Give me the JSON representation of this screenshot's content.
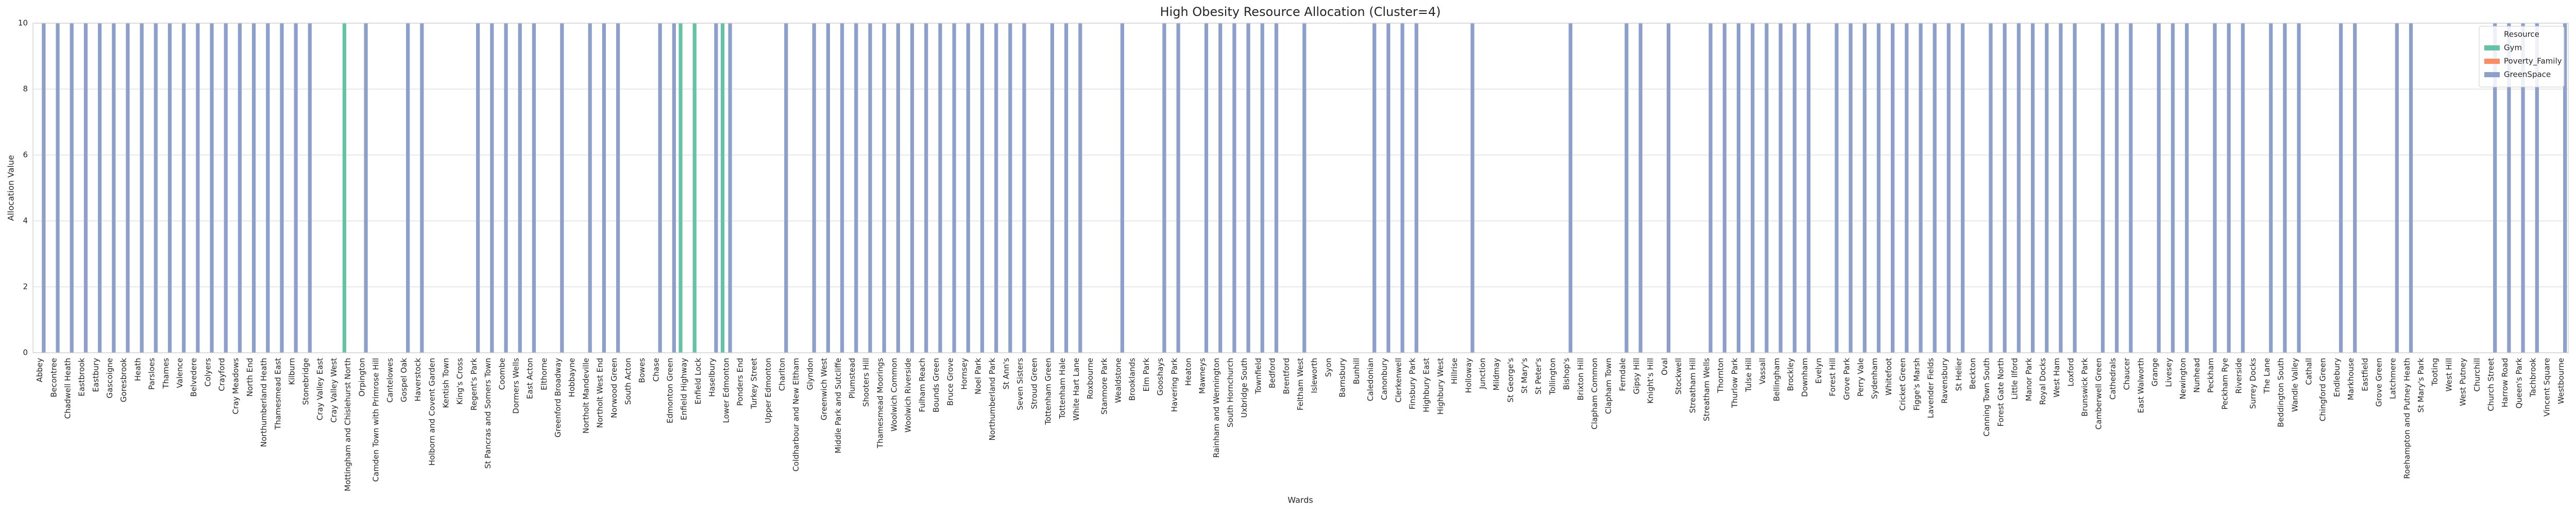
{
  "chart_data": {
    "type": "bar",
    "title": "High Obesity Resource Allocation (Cluster=4)",
    "x_label": "Wards",
    "y_label": "Allocation Value",
    "legend_title": "Resource",
    "legend_position": "upper right",
    "grid": true,
    "ylim": [
      0,
      10
    ],
    "yticks": [
      0,
      2,
      4,
      6,
      8,
      10
    ],
    "categories": [
      "Abbey",
      "Becontree",
      "Chadwell Heath",
      "Eastbrook",
      "Eastbury",
      "Gascoigne",
      "Goresbrook",
      "Heath",
      "Parsloes",
      "Thames",
      "Valence",
      "Belvedere",
      "Colyers",
      "Crayford",
      "Cray Meadows",
      "North End",
      "Northumberland Heath",
      "Thamesmead East",
      "Kilburn",
      "Stonebridge",
      "Cray Valley East",
      "Cray Valley West",
      "Mottingham and Chislehurst North",
      "Orpington",
      "Camden Town with Primrose Hill",
      "Cantelowes",
      "Gospel Oak",
      "Haverstock",
      "Holborn and Covent Garden",
      "Kentish Town",
      "King's Cross",
      "Regent's Park",
      "St Pancras and Somers Town",
      "Coombe",
      "Dormers Wells",
      "East Acton",
      "Elthorne",
      "Greenford Broadway",
      "Hobbayne",
      "Northolt Mandeville",
      "Northolt West End",
      "Norwood Green",
      "South Acton",
      "Bowes",
      "Chase",
      "Edmonton Green",
      "Enfield Highway",
      "Enfield Lock",
      "Haselbury",
      "Lower Edmonton",
      "Ponders End",
      "Turkey Street",
      "Upper Edmonton",
      "Charlton",
      "Coldharbour and New Eltham",
      "Glyndon",
      "Greenwich West",
      "Middle Park and Sutcliffe",
      "Plumstead",
      "Shooters Hill",
      "Thamesmead Moorings",
      "Woolwich Common",
      "Woolwich Riverside",
      "Fulham Reach",
      "Bounds Green",
      "Bruce Grove",
      "Hornsey",
      "Noel Park",
      "Northumberland Park",
      "St Ann's",
      "Seven Sisters",
      "Stroud Green",
      "Tottenham Green",
      "Tottenham Hale",
      "White Hart Lane",
      "Roxbourne",
      "Stanmore Park",
      "Wealdstone",
      "Brooklands",
      "Elm Park",
      "Gooshays",
      "Havering Park",
      "Heaton",
      "Mawneys",
      "Rainham and Wennington",
      "South Hornchurch",
      "Uxbridge South",
      "Townfield",
      "Bedford",
      "Brentford",
      "Feltham West",
      "Isleworth",
      "Syon",
      "Barnsbury",
      "Bunhill",
      "Caledonian",
      "Canonbury",
      "Clerkenwell",
      "Finsbury Park",
      "Highbury East",
      "Highbury West",
      "Hillrise",
      "Holloway",
      "Junction",
      "Mildmay",
      "St George's",
      "St Mary's",
      "St Peter's",
      "Tollington",
      "Bishop's",
      "Brixton Hill",
      "Clapham Common",
      "Clapham Town",
      "Ferndale",
      "Gipsy Hill",
      "Knight's Hill",
      "Oval",
      "Stockwell",
      "Streatham Hill",
      "Streatham Wells",
      "Thornton",
      "Thurlow Park",
      "Tulse Hill",
      "Vassall",
      "Bellingham",
      "Brockley",
      "Downham",
      "Evelyn",
      "Forest Hill",
      "Grove Park",
      "Perry Vale",
      "Sydenham",
      "Whitefoot",
      "Cricket Green",
      "Figge's Marsh",
      "Lavender Fields",
      "Ravensbury",
      "St Helier",
      "Beckton",
      "Canning Town South",
      "Forest Gate North",
      "Little Ilford",
      "Manor Park",
      "Royal Docks",
      "West Ham",
      "Loxford",
      "Brunswick Park",
      "Camberwell Green",
      "Cathedrals",
      "Chaucer",
      "East Walworth",
      "Grange",
      "Livesey",
      "Newington",
      "Nunhead",
      "Peckham",
      "Peckham Rye",
      "Riverside",
      "Surrey Docks",
      "The Lane",
      "Beddington South",
      "Wandle Valley",
      "Cathall",
      "Chingford Green",
      "Endlebury",
      "Markhouse",
      "Eastfield",
      "Grove Green",
      "Latchmere",
      "Roehampton and Putney Heath",
      "St Mary's Park",
      "Tooting",
      "West Hill",
      "West Putney",
      "Churchill",
      "Church Street",
      "Harrow Road",
      "Queen's Park",
      "Tachbrook",
      "Vincent Square",
      "Westbourne"
    ],
    "series": [
      {
        "name": "Gym",
        "color": "#66c2a5",
        "values": [
          0,
          0,
          0,
          0,
          0,
          0,
          0,
          0,
          0,
          0,
          0,
          0,
          0,
          0,
          0,
          0,
          0,
          0,
          0,
          0,
          0,
          0,
          10,
          0,
          0,
          0,
          0,
          0,
          0,
          0,
          0,
          0,
          0,
          0,
          0,
          0,
          0,
          0,
          0,
          0,
          0,
          0,
          0,
          0,
          0,
          0,
          10,
          10,
          0,
          10,
          0,
          0,
          0,
          0,
          0,
          0,
          0,
          0,
          0,
          0,
          0,
          0,
          0,
          0,
          0,
          0,
          0,
          0,
          0,
          0,
          0,
          0,
          0,
          0,
          0,
          0,
          0,
          0,
          0,
          0,
          0,
          0,
          0,
          0,
          0,
          0,
          0,
          0,
          0,
          0,
          0,
          0,
          0,
          0,
          0,
          0,
          0,
          0,
          0,
          0,
          0,
          0,
          0,
          0,
          0,
          0,
          0,
          0,
          0,
          0,
          0,
          0,
          0,
          0,
          0,
          0,
          0,
          0,
          0,
          0,
          0,
          0,
          0,
          0,
          0,
          0,
          0,
          0,
          0,
          0,
          0,
          0,
          0,
          0,
          0,
          0,
          0,
          0,
          0,
          0,
          0,
          0,
          0,
          0,
          0,
          0,
          0,
          0,
          0,
          0,
          0,
          0,
          0,
          0,
          0,
          0,
          0,
          0,
          0,
          0,
          0,
          0,
          0,
          0,
          0,
          0,
          0,
          0,
          0,
          0,
          0,
          0,
          0,
          0,
          0,
          0,
          0,
          0,
          0,
          0,
          0
        ]
      },
      {
        "name": "Poverty_Family",
        "color": "#fc8d62",
        "values": [
          0,
          0,
          0,
          0,
          0,
          0,
          0,
          0,
          0,
          0,
          0,
          0,
          0,
          0,
          0,
          0,
          0,
          0,
          0,
          0,
          0,
          0,
          0,
          0,
          0,
          0,
          0,
          0,
          0,
          0,
          0,
          0,
          0,
          0,
          0,
          0,
          0,
          0,
          0,
          0,
          0,
          0,
          0,
          0,
          0,
          0,
          0,
          0,
          0,
          0,
          0,
          0,
          0,
          0,
          0,
          0,
          0,
          0,
          0,
          0,
          0,
          0,
          0,
          0,
          0,
          0,
          0,
          0,
          0,
          0,
          0,
          0,
          0,
          0,
          0,
          0,
          0,
          0,
          0,
          0,
          0,
          0,
          0,
          0,
          0,
          0,
          0,
          0,
          0,
          0,
          0,
          0,
          0,
          0,
          0,
          0,
          0,
          0,
          0,
          0,
          0,
          0,
          0,
          0,
          0,
          0,
          0,
          0,
          0,
          0,
          0,
          0,
          0,
          0,
          0,
          0,
          0,
          0,
          0,
          0,
          0,
          0,
          0,
          0,
          0,
          0,
          0,
          0,
          0,
          0,
          0,
          0,
          0,
          0,
          0,
          0,
          0,
          0,
          0,
          0,
          0,
          0,
          0,
          0,
          0,
          0,
          0,
          0,
          0,
          0,
          0,
          0,
          0,
          0,
          0,
          0,
          0,
          0,
          0,
          0,
          0,
          0,
          0,
          0,
          0,
          0,
          0,
          0,
          0,
          0,
          0,
          0,
          0,
          0,
          0,
          0,
          0,
          0,
          0,
          0,
          0
        ]
      },
      {
        "name": "GreenSpace",
        "color": "#8da0cb",
        "values": [
          10,
          10,
          10,
          10,
          10,
          10,
          10,
          10,
          10,
          10,
          10,
          10,
          10,
          10,
          10,
          10,
          10,
          10,
          10,
          10,
          0,
          0,
          0,
          10,
          0,
          0,
          10,
          10,
          0,
          0,
          0,
          10,
          10,
          10,
          10,
          10,
          0,
          10,
          0,
          10,
          10,
          10,
          0,
          0,
          10,
          10,
          0,
          0,
          10,
          10,
          0,
          0,
          0,
          10,
          0,
          10,
          10,
          10,
          10,
          10,
          10,
          10,
          10,
          10,
          10,
          10,
          10,
          10,
          10,
          10,
          10,
          0,
          10,
          10,
          10,
          0,
          0,
          10,
          0,
          0,
          10,
          10,
          0,
          10,
          10,
          10,
          10,
          10,
          10,
          0,
          10,
          0,
          0,
          0,
          0,
          10,
          10,
          10,
          10,
          0,
          0,
          0,
          10,
          0,
          0,
          0,
          0,
          0,
          0,
          10,
          0,
          0,
          0,
          10,
          10,
          0,
          10,
          0,
          0,
          10,
          10,
          10,
          10,
          10,
          10,
          10,
          10,
          0,
          10,
          10,
          10,
          10,
          10,
          10,
          10,
          10,
          10,
          10,
          0,
          10,
          10,
          10,
          10,
          10,
          10,
          10,
          0,
          10,
          10,
          10,
          0,
          10,
          10,
          10,
          0,
          10,
          10,
          10,
          0,
          10,
          10,
          10,
          0,
          0,
          10,
          10,
          0,
          0,
          10,
          10,
          0,
          0,
          0,
          0,
          0,
          10,
          10,
          10,
          10,
          0,
          10
        ]
      }
    ]
  }
}
